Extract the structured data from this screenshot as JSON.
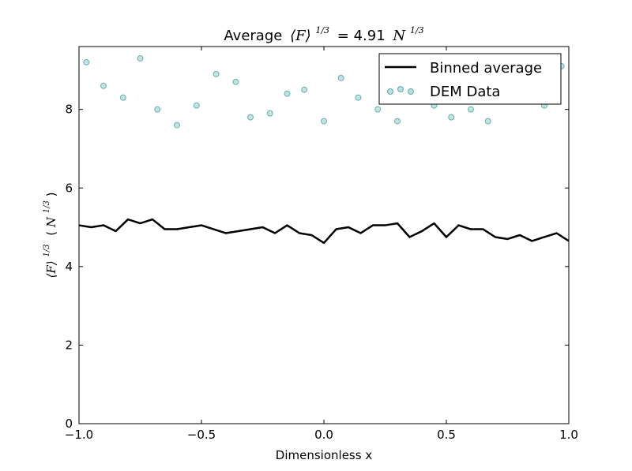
{
  "chart_data": {
    "type": "scatter",
    "title": "Average ⟨F⟩^(1/3) = 4.91 N^(1/3)",
    "title_parts": {
      "prefix": "Average",
      "symbol": "⟨F⟩",
      "exponent": "1/3",
      "equals": "= 4.91",
      "unit": "N",
      "unit_exponent": "1/3"
    },
    "xlabel": "Dimensionless x",
    "ylabel": "⟨F⟩^(1/3) (N^(1/3))",
    "ylabel_parts": {
      "symbol": "⟨F⟩",
      "exponent": "1/3",
      "unit": "N",
      "unit_exponent": "1/3"
    },
    "xlim": [
      -1.0,
      1.0
    ],
    "ylim": [
      0,
      9.6
    ],
    "xticks": [
      -1.0,
      -0.5,
      0.0,
      0.5,
      1.0
    ],
    "xtick_labels": [
      "−1.0",
      "−0.5",
      "0.0",
      "0.5",
      "1.0"
    ],
    "yticks": [
      0,
      2,
      4,
      6,
      8
    ],
    "ytick_labels": [
      "0",
      "2",
      "4",
      "6",
      "8"
    ],
    "grid": false,
    "legend_position": "top-right",
    "series": [
      {
        "name": "Binned average",
        "kind": "line",
        "color": "#000000",
        "x": [
          -1.0,
          -0.95,
          -0.9,
          -0.85,
          -0.8,
          -0.75,
          -0.7,
          -0.65,
          -0.6,
          -0.55,
          -0.5,
          -0.45,
          -0.4,
          -0.35,
          -0.3,
          -0.25,
          -0.2,
          -0.15,
          -0.1,
          -0.05,
          0.0,
          0.05,
          0.1,
          0.15,
          0.2,
          0.25,
          0.3,
          0.35,
          0.4,
          0.45,
          0.5,
          0.55,
          0.6,
          0.65,
          0.7,
          0.75,
          0.8,
          0.85,
          0.9,
          0.95,
          1.0
        ],
        "y": [
          5.05,
          5.0,
          5.05,
          4.9,
          5.2,
          5.1,
          5.2,
          4.95,
          4.95,
          5.0,
          5.05,
          4.95,
          4.85,
          4.9,
          4.95,
          5.0,
          4.85,
          5.05,
          4.85,
          4.8,
          4.6,
          4.95,
          5.0,
          4.85,
          5.05,
          5.05,
          5.1,
          4.75,
          4.9,
          5.1,
          4.75,
          5.05,
          4.95,
          4.95,
          4.75,
          4.7,
          4.8,
          4.65,
          4.75,
          4.85,
          4.65
        ]
      },
      {
        "name": "DEM Data",
        "kind": "scatter",
        "color": "#008080",
        "fill": "#7fbfbf",
        "alpha": 0.3,
        "x": [
          -0.97,
          -0.9,
          -0.82,
          -0.75,
          -0.68,
          -0.6,
          -0.52,
          -0.44,
          -0.36,
          -0.3,
          -0.22,
          -0.15,
          -0.08,
          0.0,
          0.07,
          0.14,
          0.22,
          0.3,
          0.37,
          0.45,
          0.52,
          0.6,
          0.67,
          0.75,
          0.82,
          0.9,
          0.97
        ],
        "y": [
          9.2,
          8.6,
          8.3,
          9.3,
          8.0,
          7.6,
          8.1,
          8.9,
          8.7,
          7.8,
          7.9,
          8.4,
          8.5,
          7.7,
          8.8,
          8.3,
          8.0,
          7.7,
          8.2,
          8.1,
          7.8,
          8.0,
          7.7,
          8.3,
          8.2,
          8.1,
          9.1
        ]
      }
    ]
  }
}
